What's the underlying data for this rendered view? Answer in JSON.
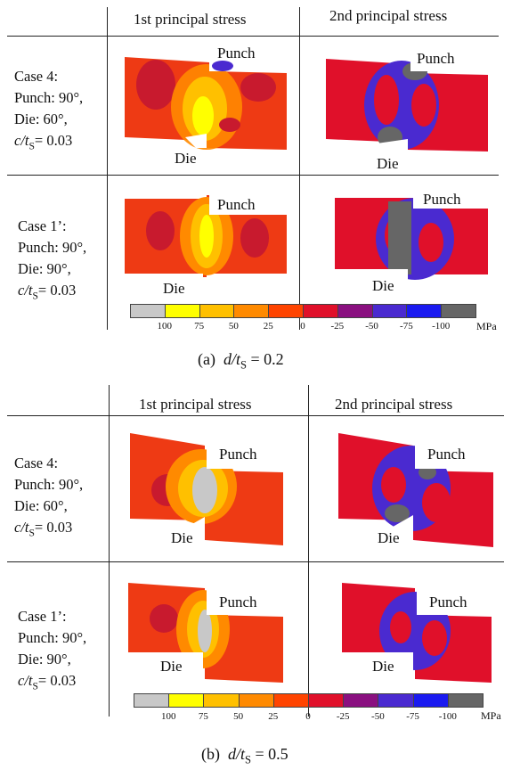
{
  "panel_a": {
    "header_first": "1st principal stress",
    "header_second": "2nd principal stress",
    "case4": {
      "title": "Case 4:",
      "punch": "Punch: 90°,",
      "die": "Die: 60°,",
      "ct_sym": "c/t",
      "ct_sub": "S",
      "ct_val": "= 0.03"
    },
    "case1": {
      "title": "Case 1’:",
      "punch": "Punch: 90°,",
      "die": "Die: 90°,",
      "ct_sym": "c/t",
      "ct_sub": "S",
      "ct_val": "= 0.03"
    },
    "label_punch": "Punch",
    "label_die": "Die",
    "colorbar_ticks": [
      "100",
      "75",
      "50",
      "25",
      "0",
      "-25",
      "-50",
      "-75",
      "-100"
    ],
    "colorbar_unit": "MPa",
    "caption_prefix": "(a)",
    "caption_sym": "d/t",
    "caption_sub": "S",
    "caption_val": "= 0.2"
  },
  "panel_b": {
    "header_first": "1st principal stress",
    "header_second": "2nd principal stress",
    "case4": {
      "title": "Case 4:",
      "punch": "Punch: 90°,",
      "die": "Die: 60°,",
      "ct_sym": "c/t",
      "ct_sub": "S",
      "ct_val": "= 0.03"
    },
    "case1": {
      "title": "Case 1’:",
      "punch": "Punch: 90°,",
      "die": "Die: 90°,",
      "ct_sym": "c/t",
      "ct_sub": "S",
      "ct_val": "= 0.03"
    },
    "label_punch": "Punch",
    "label_die": "Die",
    "colorbar_ticks": [
      "100",
      "75",
      "50",
      "25",
      "0",
      "-25",
      "-50",
      "-75",
      "-100"
    ],
    "colorbar_unit": "MPa",
    "caption_prefix": "(b)",
    "caption_sym": "d/t",
    "caption_sub": "S",
    "caption_val": "= 0.5"
  },
  "colorbar_colors": [
    "#c8c8c8",
    "#ffff00",
    "#ffc000",
    "#ff8a00",
    "#ff4400",
    "#e0102a",
    "#8a1080",
    "#4a2ad0",
    "#1a1af0",
    "#666666"
  ]
}
